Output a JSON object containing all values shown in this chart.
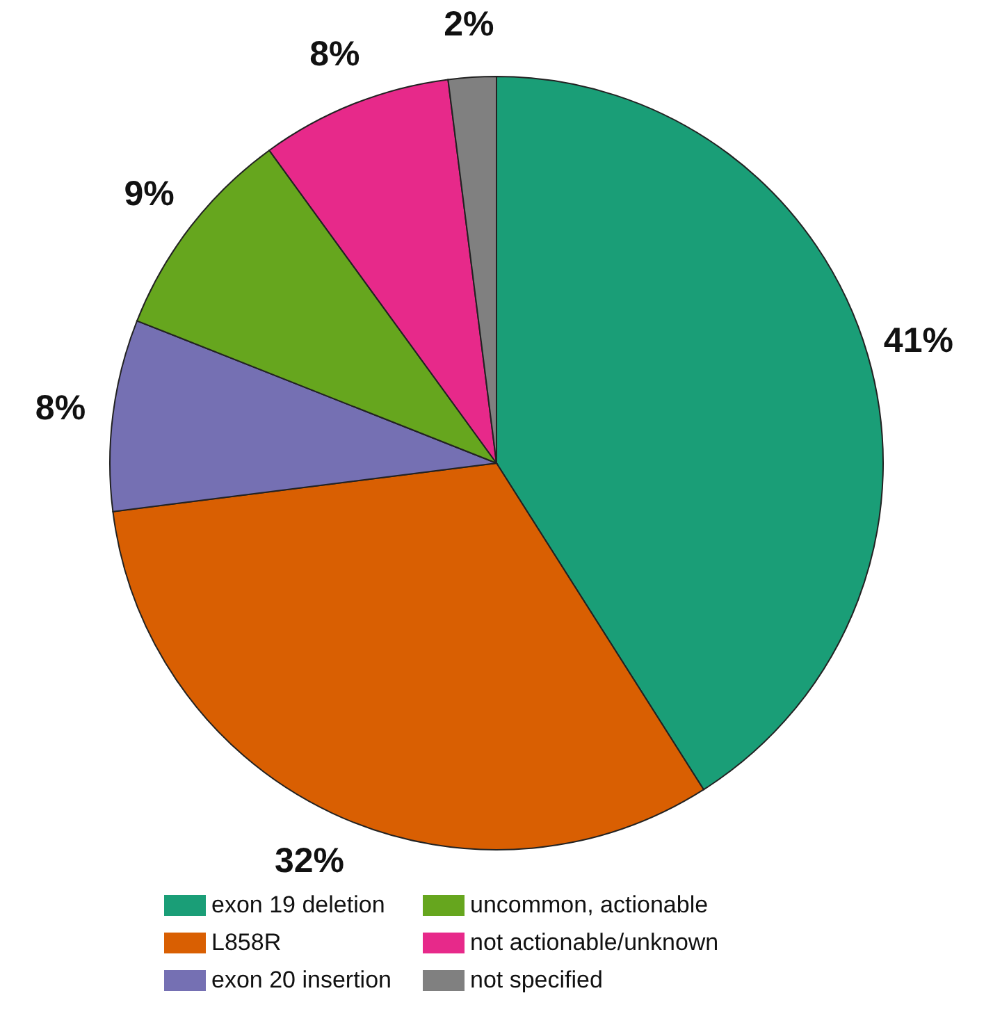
{
  "chart_data": {
    "type": "pie",
    "categories": [
      "exon 19 deletion",
      "L858R",
      "exon 20 insertion",
      "uncommon, actionable",
      "not actionable/unknown",
      "not specified"
    ],
    "values": [
      41,
      32,
      8,
      9,
      8,
      2
    ],
    "colors": [
      "#1a9e77",
      "#d95f02",
      "#7570b3",
      "#66a61e",
      "#e7298a",
      "#808080"
    ],
    "value_labels": [
      "41%",
      "32%",
      "8%",
      "9%",
      "8%",
      "2%"
    ],
    "legend": "bottom"
  }
}
